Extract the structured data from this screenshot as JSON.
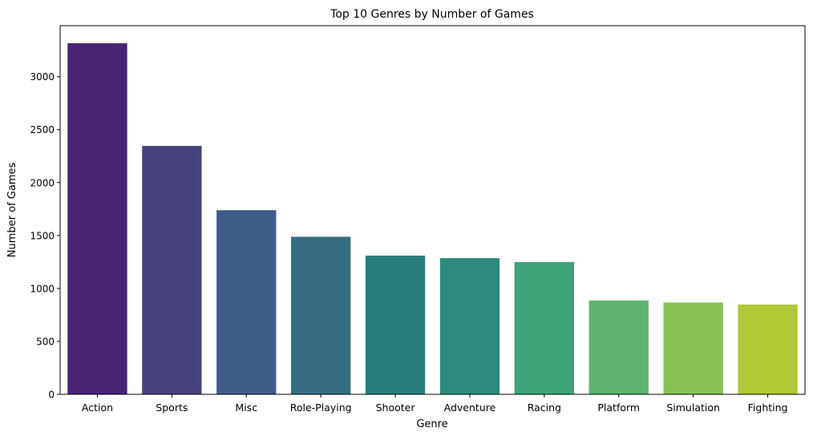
{
  "chart_data": {
    "type": "bar",
    "title": "Top 10 Genres by Number of Games",
    "xlabel": "Genre",
    "ylabel": "Number of Games",
    "categories": [
      "Action",
      "Sports",
      "Misc",
      "Role-Playing",
      "Shooter",
      "Adventure",
      "Racing",
      "Platform",
      "Simulation",
      "Fighting"
    ],
    "values": [
      3316,
      2346,
      1739,
      1488,
      1310,
      1286,
      1249,
      886,
      867,
      848
    ],
    "ylim": [
      0,
      3482
    ],
    "yticks": [
      0,
      500,
      1000,
      1500,
      2000,
      2500,
      3000
    ],
    "grid": false,
    "legend": "none",
    "colors": [
      "#482475",
      "#46427f",
      "#3e5c89",
      "#356e82",
      "#287c7c",
      "#2e8b7c",
      "#3ea378",
      "#5fb36d",
      "#86c256",
      "#b0c937"
    ]
  }
}
